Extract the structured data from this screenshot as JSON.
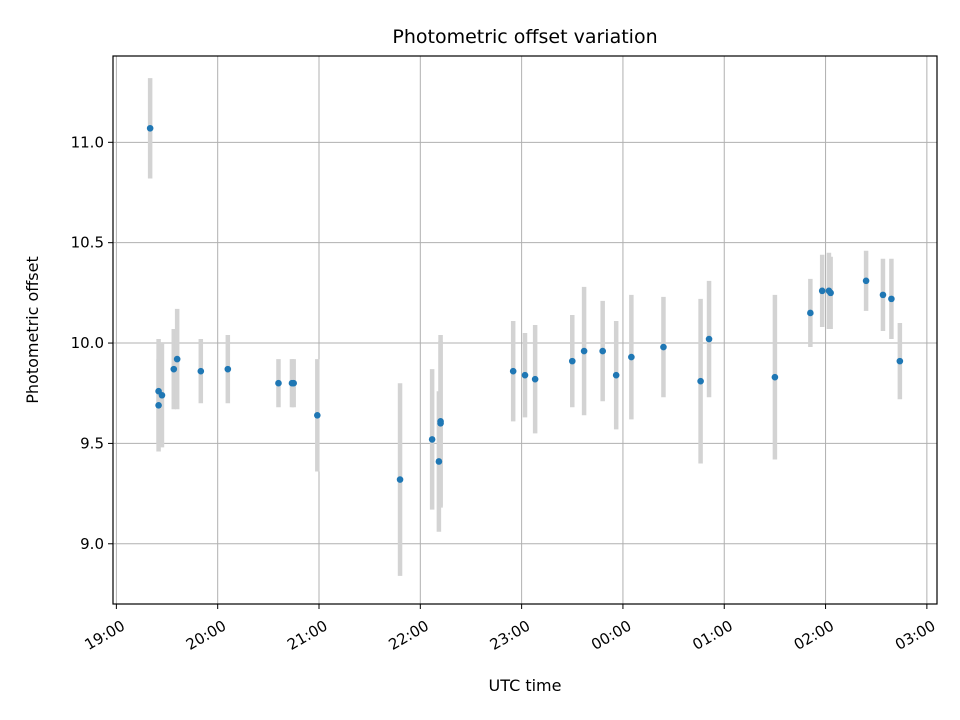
{
  "chart_data": {
    "type": "scatter",
    "title": "Photometric offset variation",
    "xlabel": "UTC time",
    "ylabel": "Photometric offset",
    "x_axis_type": "time",
    "xlim": [
      "18:58",
      "03:06"
    ],
    "ylim": [
      8.7,
      11.43
    ],
    "grid": true,
    "x_ticks": [
      "19:00",
      "20:00",
      "21:00",
      "22:00",
      "23:00",
      "00:00",
      "01:00",
      "02:00",
      "03:00"
    ],
    "y_ticks": [
      "9.0",
      "9.5",
      "10.0",
      "10.5",
      "11.0"
    ],
    "marker_color": "#1f77b4",
    "errorbar_color": "#d3d3d3",
    "points": [
      {
        "x": "19:20",
        "y": 11.07,
        "err": 0.25
      },
      {
        "x": "19:25",
        "y": 9.76,
        "err": 0.26
      },
      {
        "x": "19:25",
        "y": 9.69,
        "err": 0.23
      },
      {
        "x": "19:27",
        "y": 9.74,
        "err": 0.26
      },
      {
        "x": "19:34",
        "y": 9.87,
        "err": 0.2
      },
      {
        "x": "19:36",
        "y": 9.92,
        "err": 0.25
      },
      {
        "x": "19:50",
        "y": 9.86,
        "err": 0.16
      },
      {
        "x": "20:06",
        "y": 9.87,
        "err": 0.17
      },
      {
        "x": "20:36",
        "y": 9.8,
        "err": 0.12
      },
      {
        "x": "20:44",
        "y": 9.8,
        "err": 0.12
      },
      {
        "x": "20:45",
        "y": 9.8,
        "err": 0.12
      },
      {
        "x": "20:59",
        "y": 9.64,
        "err": 0.28
      },
      {
        "x": "21:48",
        "y": 9.32,
        "err": 0.48
      },
      {
        "x": "22:07",
        "y": 9.52,
        "err": 0.35
      },
      {
        "x": "22:11",
        "y": 9.41,
        "err": 0.35
      },
      {
        "x": "22:12",
        "y": 9.61,
        "err": 0.43
      },
      {
        "x": "22:12",
        "y": 9.6,
        "err": 0.41
      },
      {
        "x": "22:55",
        "y": 9.86,
        "err": 0.25
      },
      {
        "x": "23:02",
        "y": 9.84,
        "err": 0.21
      },
      {
        "x": "23:08",
        "y": 9.82,
        "err": 0.27
      },
      {
        "x": "23:30",
        "y": 9.91,
        "err": 0.23
      },
      {
        "x": "23:37",
        "y": 9.96,
        "err": 0.32
      },
      {
        "x": "23:48",
        "y": 9.96,
        "err": 0.25
      },
      {
        "x": "23:56",
        "y": 9.84,
        "err": 0.27
      },
      {
        "x": "00:05",
        "y": 9.93,
        "err": 0.31
      },
      {
        "x": "00:24",
        "y": 9.98,
        "err": 0.25
      },
      {
        "x": "00:46",
        "y": 9.81,
        "err": 0.41
      },
      {
        "x": "00:51",
        "y": 10.02,
        "err": 0.29
      },
      {
        "x": "01:30",
        "y": 9.83,
        "err": 0.41
      },
      {
        "x": "01:51",
        "y": 10.15,
        "err": 0.17
      },
      {
        "x": "01:58",
        "y": 10.26,
        "err": 0.18
      },
      {
        "x": "02:02",
        "y": 10.26,
        "err": 0.19
      },
      {
        "x": "02:03",
        "y": 10.25,
        "err": 0.18
      },
      {
        "x": "02:24",
        "y": 10.31,
        "err": 0.15
      },
      {
        "x": "02:34",
        "y": 10.24,
        "err": 0.18
      },
      {
        "x": "02:39",
        "y": 10.22,
        "err": 0.2
      },
      {
        "x": "02:44",
        "y": 9.91,
        "err": 0.19
      }
    ]
  }
}
